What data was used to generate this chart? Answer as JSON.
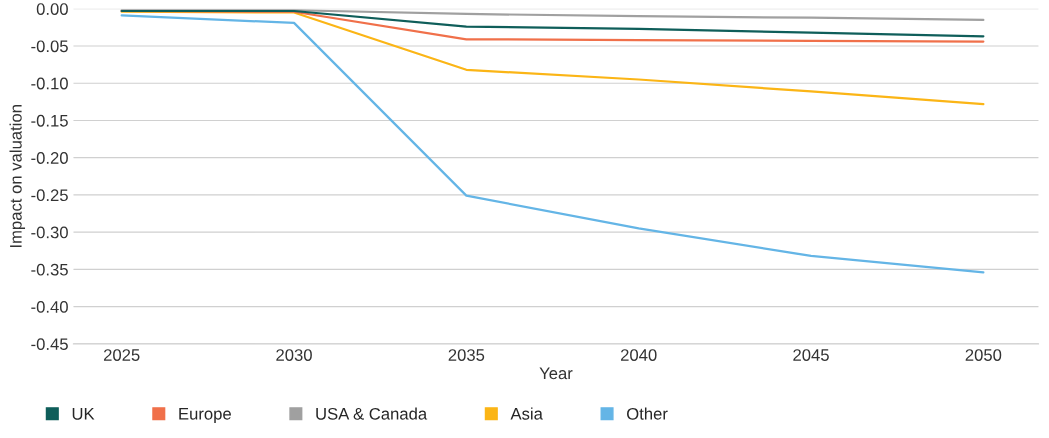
{
  "chart_data": {
    "type": "line",
    "xlabel": "Year",
    "ylabel": "Impact on valuation",
    "x": [
      2025,
      2030,
      2035,
      2040,
      2045,
      2050
    ],
    "xlim": [
      2023.6,
      2051.6
    ],
    "xticks": [
      2025,
      2030,
      2035,
      2040,
      2045,
      2050
    ],
    "ylim": [
      -0.45,
      0.0
    ],
    "yticks": [
      {
        "value": 0.0,
        "label": "0.00"
      },
      {
        "value": -0.05,
        "label": "-0.05"
      },
      {
        "value": -0.1,
        "label": "-0.10"
      },
      {
        "value": -0.15,
        "label": "-0.15"
      },
      {
        "value": -0.2,
        "label": "-0.20"
      },
      {
        "value": -0.25,
        "label": "-0.25"
      },
      {
        "value": -0.3,
        "label": "-0.30"
      },
      {
        "value": -0.35,
        "label": "-0.35"
      },
      {
        "value": -0.4,
        "label": "-0.40"
      },
      {
        "value": -0.45,
        "label": "-0.45"
      }
    ],
    "grid": "y",
    "legend": "bottom left",
    "marker": "none",
    "line_style": "solid",
    "series": [
      {
        "name": "UK",
        "color": "#0f5e5a",
        "values": [
          -0.003,
          -0.003,
          -0.024,
          -0.027,
          -0.032,
          -0.037
        ]
      },
      {
        "name": "Europe",
        "color": "#f0704a",
        "values": [
          -0.003,
          -0.004,
          -0.041,
          -0.042,
          -0.043,
          -0.044
        ]
      },
      {
        "name": "USA & Canada",
        "color": "#a0a0a0",
        "values": [
          -0.002,
          -0.002,
          -0.007,
          -0.01,
          -0.012,
          -0.015
        ]
      },
      {
        "name": "Asia",
        "color": "#fbb516",
        "values": [
          -0.004,
          -0.005,
          -0.082,
          -0.095,
          -0.111,
          -0.128
        ]
      },
      {
        "name": "Other",
        "color": "#64b5e6",
        "values": [
          -0.009,
          -0.019,
          -0.251,
          -0.295,
          -0.332,
          -0.354
        ]
      }
    ]
  }
}
